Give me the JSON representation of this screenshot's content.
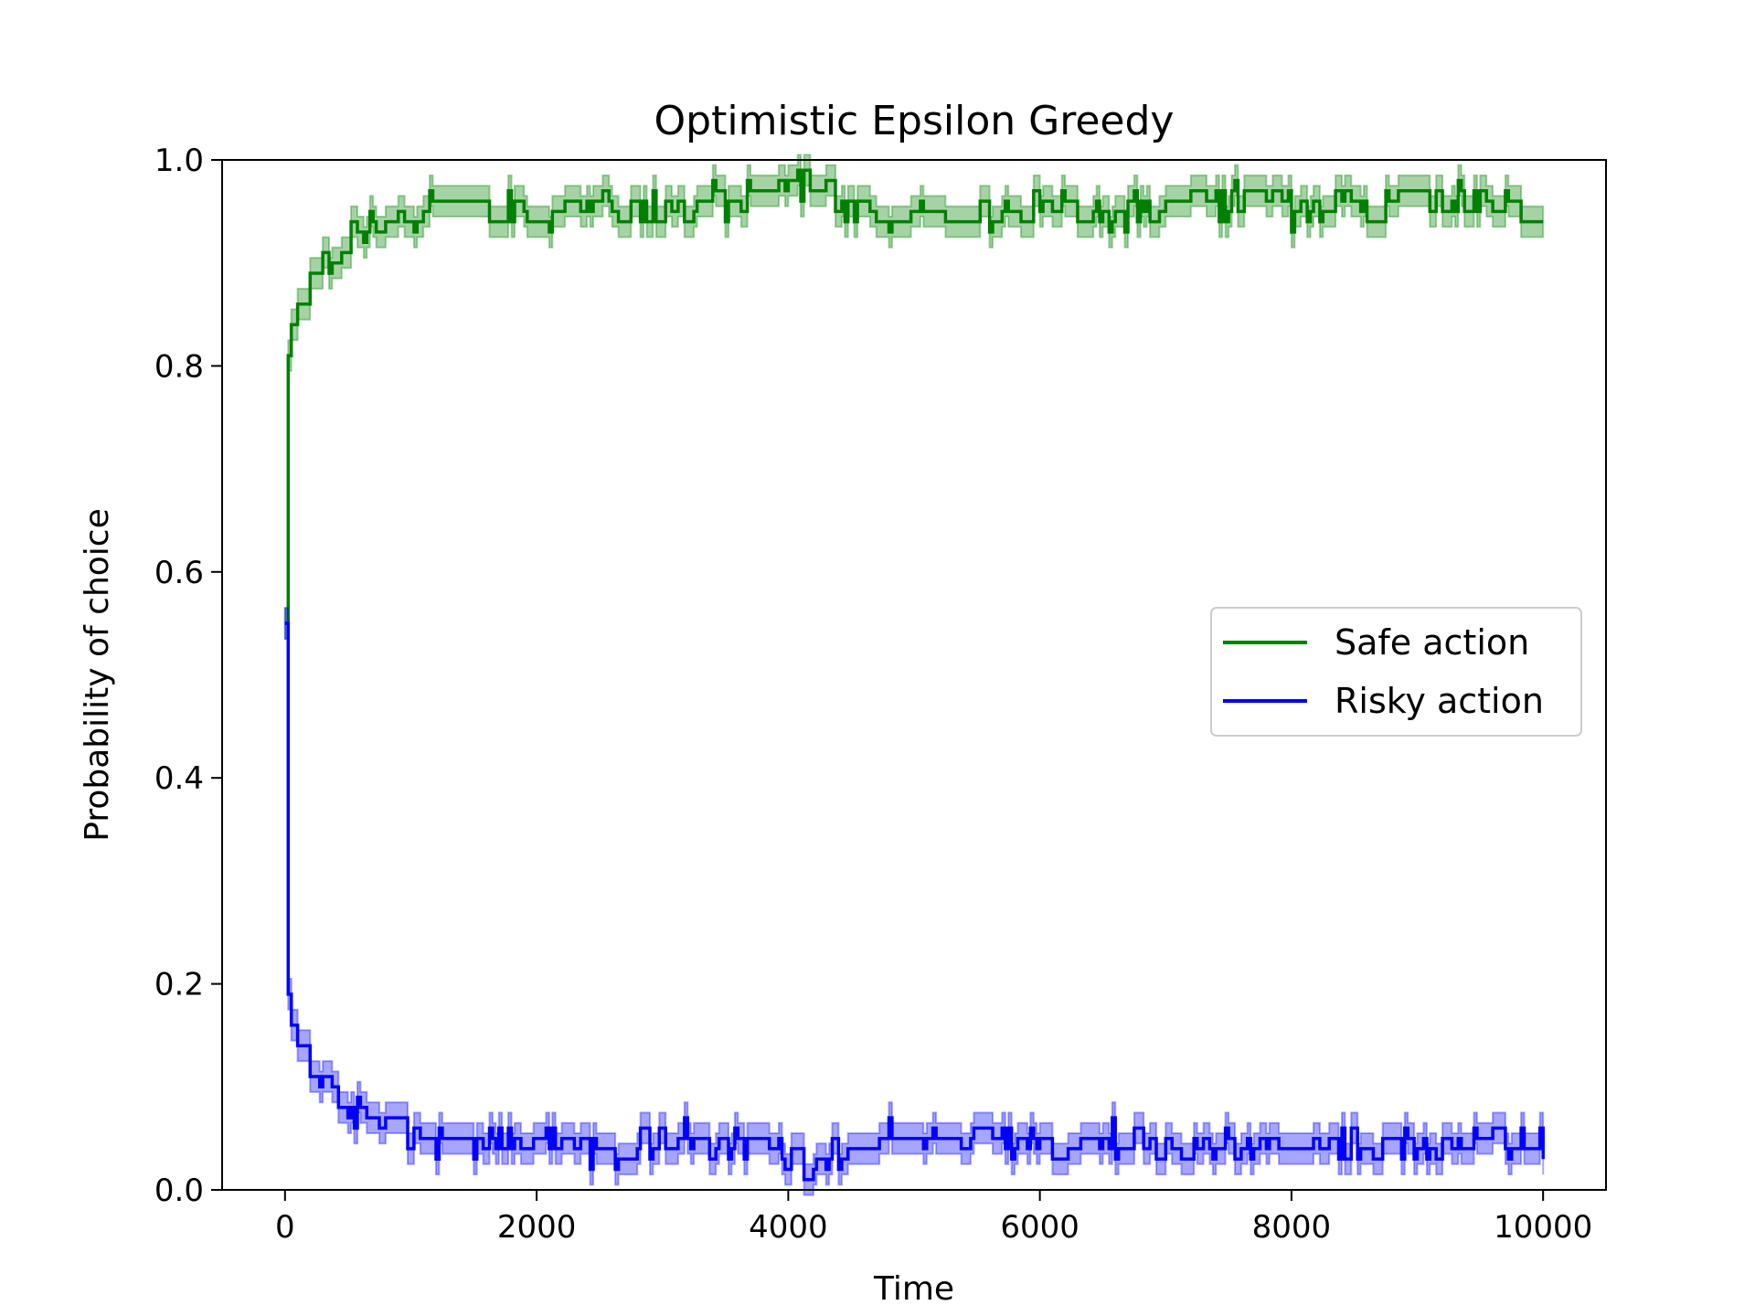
{
  "chart_data": {
    "type": "line",
    "title": "Optimistic Epsilon Greedy",
    "xlabel": "Time",
    "ylabel": "Probability of choice",
    "xlim": [
      -500,
      10500
    ],
    "ylim": [
      0.0,
      1.0
    ],
    "xticks": [
      0,
      2000,
      4000,
      6000,
      8000,
      10000
    ],
    "xtick_labels": [
      "0",
      "2000",
      "4000",
      "6000",
      "8000",
      "10000"
    ],
    "yticks": [
      0.0,
      0.2,
      0.4,
      0.6,
      0.8,
      1.0
    ],
    "ytick_labels": [
      "0.0",
      "0.2",
      "0.4",
      "0.6",
      "0.8",
      "1.0"
    ],
    "legend_position": "center-right",
    "band_halfwidth": 0.015,
    "series": [
      {
        "name": "Safe action",
        "color": "#008000",
        "x": [
          0,
          10,
          20,
          50,
          100,
          150,
          200,
          300,
          400,
          500,
          600,
          700,
          800,
          900,
          1000,
          1200,
          1400,
          1600,
          1800,
          2000,
          2200,
          2400,
          2600,
          2800,
          3000,
          3200,
          3400,
          3600,
          3800,
          4000,
          4200,
          4400,
          4600,
          4800,
          5000,
          5200,
          5400,
          5600,
          5800,
          6000,
          6200,
          6400,
          6600,
          6800,
          7000,
          7200,
          7400,
          7600,
          7800,
          8000,
          8200,
          8400,
          8600,
          8800,
          9000,
          9200,
          9400,
          9600,
          9800,
          10000
        ],
        "values": [
          0.55,
          0.7,
          0.8,
          0.84,
          0.86,
          0.87,
          0.88,
          0.9,
          0.91,
          0.92,
          0.93,
          0.93,
          0.94,
          0.94,
          0.95,
          0.96,
          0.96,
          0.95,
          0.95,
          0.95,
          0.95,
          0.96,
          0.96,
          0.95,
          0.95,
          0.95,
          0.96,
          0.96,
          0.96,
          0.97,
          0.98,
          0.96,
          0.95,
          0.95,
          0.95,
          0.96,
          0.95,
          0.95,
          0.95,
          0.96,
          0.96,
          0.95,
          0.95,
          0.95,
          0.96,
          0.96,
          0.96,
          0.96,
          0.96,
          0.95,
          0.96,
          0.96,
          0.95,
          0.96,
          0.96,
          0.96,
          0.96,
          0.95,
          0.95,
          0.95
        ]
      },
      {
        "name": "Risky action",
        "color": "#0000ff",
        "x": [
          0,
          10,
          20,
          50,
          100,
          150,
          200,
          300,
          400,
          500,
          600,
          700,
          800,
          900,
          1000,
          1200,
          1400,
          1600,
          1800,
          2000,
          2200,
          2400,
          2600,
          2800,
          3000,
          3200,
          3400,
          3600,
          3800,
          4000,
          4200,
          4400,
          4600,
          4800,
          5000,
          5200,
          5400,
          5600,
          5800,
          6000,
          6200,
          6400,
          6600,
          6800,
          7000,
          7200,
          7400,
          7600,
          7800,
          8000,
          8200,
          8400,
          8600,
          8800,
          9000,
          9200,
          9400,
          9600,
          9800,
          10000
        ],
        "values": [
          0.55,
          0.3,
          0.2,
          0.16,
          0.14,
          0.13,
          0.12,
          0.1,
          0.09,
          0.08,
          0.07,
          0.07,
          0.06,
          0.06,
          0.05,
          0.04,
          0.04,
          0.05,
          0.05,
          0.05,
          0.05,
          0.04,
          0.04,
          0.05,
          0.05,
          0.05,
          0.04,
          0.04,
          0.04,
          0.03,
          0.02,
          0.04,
          0.05,
          0.05,
          0.05,
          0.04,
          0.05,
          0.05,
          0.05,
          0.04,
          0.04,
          0.05,
          0.05,
          0.05,
          0.04,
          0.04,
          0.04,
          0.04,
          0.04,
          0.05,
          0.04,
          0.04,
          0.05,
          0.04,
          0.04,
          0.04,
          0.04,
          0.05,
          0.05,
          0.05
        ]
      }
    ]
  }
}
